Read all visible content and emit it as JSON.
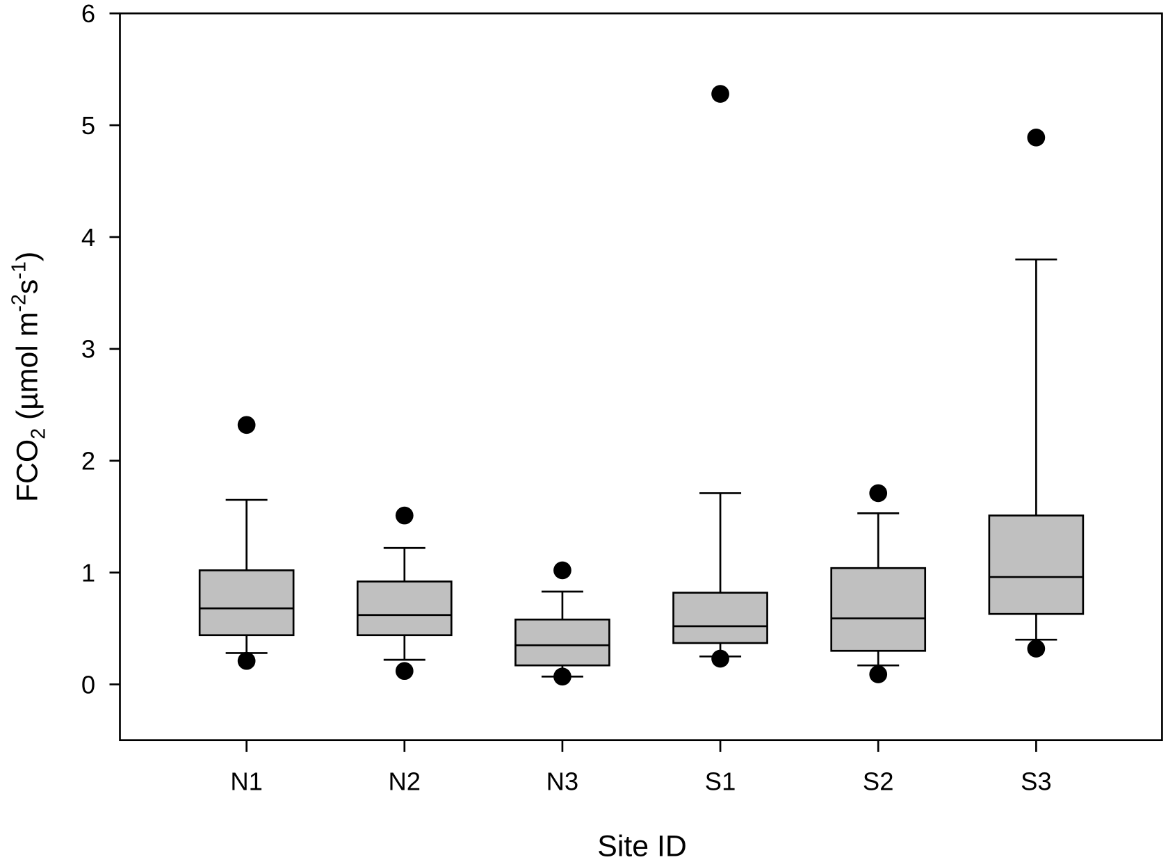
{
  "chart_data": {
    "type": "box",
    "xlabel": "Site ID",
    "ylabel": {
      "main": "FCO",
      "sub": "2",
      "unit_open": " (µmol m",
      "sup1": "-2",
      "mid": "s",
      "sup2": "-1",
      "close": ")"
    },
    "ylim": [
      -0.5,
      6
    ],
    "yticks": [
      "0",
      "1",
      "2",
      "3",
      "4",
      "5",
      "6"
    ],
    "categories": [
      "N1",
      "N2",
      "N3",
      "S1",
      "S2",
      "S3"
    ],
    "box_color": "#c0c0c0",
    "boxes": [
      {
        "whisker_low": 0.28,
        "q1": 0.44,
        "median": 0.68,
        "q3": 1.02,
        "whisker_high": 1.65,
        "outliers": [
          2.32,
          0.21
        ]
      },
      {
        "whisker_low": 0.22,
        "q1": 0.44,
        "median": 0.62,
        "q3": 0.92,
        "whisker_high": 1.22,
        "outliers": [
          1.51,
          0.12
        ]
      },
      {
        "whisker_low": 0.07,
        "q1": 0.17,
        "median": 0.35,
        "q3": 0.58,
        "whisker_high": 0.83,
        "outliers": [
          1.02,
          0.07
        ]
      },
      {
        "whisker_low": 0.25,
        "q1": 0.37,
        "median": 0.52,
        "q3": 0.82,
        "whisker_high": 1.71,
        "outliers": [
          5.28,
          0.23
        ]
      },
      {
        "whisker_low": 0.17,
        "q1": 0.3,
        "median": 0.59,
        "q3": 1.04,
        "whisker_high": 1.53,
        "outliers": [
          1.71,
          0.09
        ]
      },
      {
        "whisker_low": 0.4,
        "q1": 0.63,
        "median": 0.96,
        "q3": 1.51,
        "whisker_high": 3.8,
        "outliers": [
          4.89,
          0.32
        ]
      }
    ],
    "grid": false,
    "legend": "none"
  }
}
